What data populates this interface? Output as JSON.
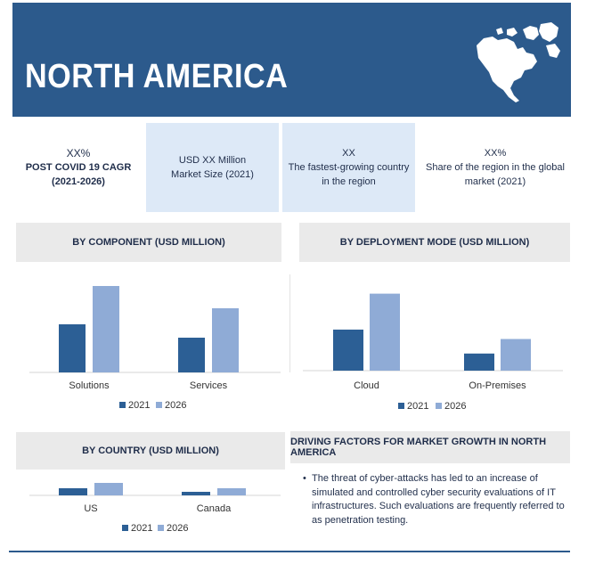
{
  "banner": {
    "title": "NORTH AMERICA"
  },
  "stats": {
    "cagr": {
      "value": "XX%",
      "label": "POST COVID 19 CAGR (2021-2026)"
    },
    "market_size": {
      "value": "USD XX Million",
      "label": "Market Size (2021)"
    },
    "fastest": {
      "value": "XX",
      "label": "The fastest-growing country in the region"
    },
    "share": {
      "value": "XX%",
      "label": "Share of the region in the global market (2021)"
    }
  },
  "driving_factors": {
    "heading": "DRIVING FACTORS FOR MARKET GROWTH IN NORTH AMERICA",
    "bullets": [
      "The threat of cyber-attacks has led to an increase of simulated and controlled cyber security evaluations of IT infrastructures. Such evaluations are frequently referred to as penetration testing."
    ]
  },
  "colors": {
    "banner": "#2c5a8c",
    "series_2021": "#2c5f95",
    "series_2026": "#8fabd6"
  },
  "chart_data": [
    {
      "type": "bar",
      "title": "BY COMPONENT (USD MILLION)",
      "categories": [
        "Solutions",
        "Services"
      ],
      "series": [
        {
          "name": "2021",
          "values": [
            54,
            39
          ]
        },
        {
          "name": "2026",
          "values": [
            97,
            72
          ]
        }
      ],
      "ylim": [
        0,
        100
      ],
      "grid": false,
      "legend": "bottom"
    },
    {
      "type": "bar",
      "title": "BY  DEPLOYMENT MODE (USD MILLION)",
      "categories": [
        "Cloud",
        "On-Premises"
      ],
      "series": [
        {
          "name": "2021",
          "values": [
            48,
            20
          ]
        },
        {
          "name": "2026",
          "values": [
            90,
            37
          ]
        }
      ],
      "ylim": [
        0,
        100
      ],
      "grid": false,
      "legend": "bottom"
    },
    {
      "type": "bar",
      "title": "BY COUNTRY (USD MILLION)",
      "categories": [
        "US",
        "Canada"
      ],
      "series": [
        {
          "name": "2021",
          "values": [
            8,
            4
          ]
        },
        {
          "name": "2026",
          "values": [
            14,
            8
          ]
        }
      ],
      "ylim": [
        0,
        100
      ],
      "grid": false,
      "legend": "bottom"
    }
  ]
}
